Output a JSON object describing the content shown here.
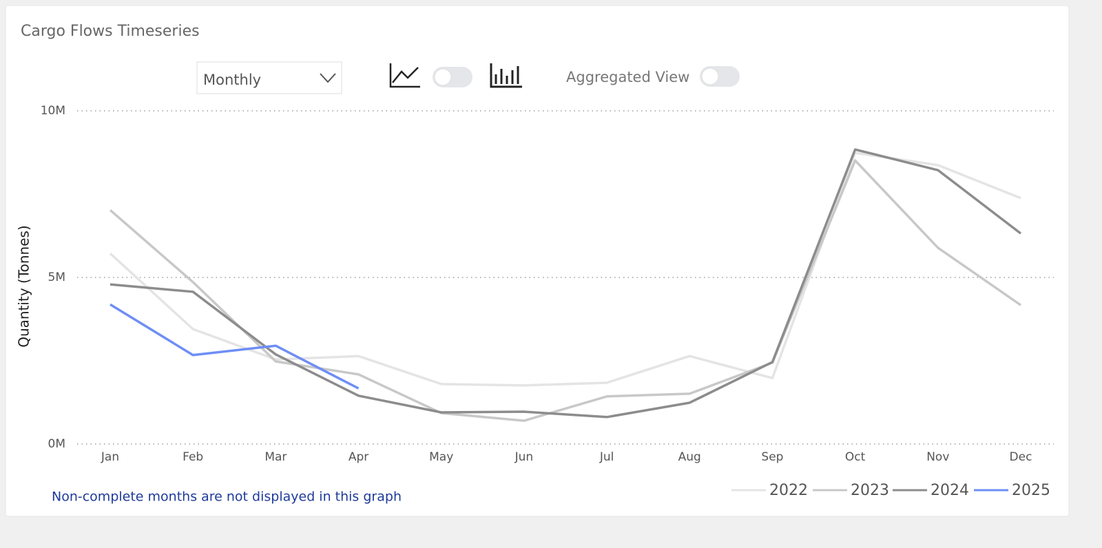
{
  "controls": {
    "period": "Monthly",
    "aggregated_view": "Aggregated View"
  },
  "chart_data": {
    "type": "line",
    "title": "Cargo Flows Timeseries",
    "y_label": "Quantity (Tonnes)",
    "note": "Non-complete months are not displayed in this graph",
    "categories": [
      "Jan",
      "Feb",
      "Mar",
      "Apr",
      "May",
      "Jun",
      "Jul",
      "Aug",
      "Sep",
      "Oct",
      "Nov",
      "Dec"
    ],
    "series": [
      {
        "name": "2022",
        "color": "#e4e4e4",
        "values": [
          5.72,
          3.45,
          2.54,
          2.64,
          1.8,
          1.76,
          1.84,
          2.64,
          1.98,
          8.74,
          8.37,
          7.38
        ]
      },
      {
        "name": "2023",
        "color": "#c8c8c8",
        "values": [
          7.02,
          4.86,
          2.48,
          2.09,
          0.93,
          0.7,
          1.43,
          1.51,
          2.44,
          8.51,
          5.89,
          4.17
        ]
      },
      {
        "name": "2024",
        "color": "#8c8c8c",
        "values": [
          4.79,
          4.57,
          2.69,
          1.45,
          0.95,
          0.97,
          0.81,
          1.24,
          2.46,
          8.84,
          8.22,
          6.32
        ]
      },
      {
        "name": "2025",
        "color": "#6e8ef5",
        "values": [
          4.19,
          2.67,
          2.95,
          1.67,
          null,
          null,
          null,
          null,
          null,
          null,
          null,
          null
        ]
      }
    ],
    "ylim": [
      0,
      10
    ],
    "yticks": [
      {
        "value": 0,
        "label": "0M"
      },
      {
        "value": 5,
        "label": "5M"
      },
      {
        "value": 10,
        "label": "10M"
      }
    ],
    "grid": true,
    "legend": "bottom-right"
  }
}
